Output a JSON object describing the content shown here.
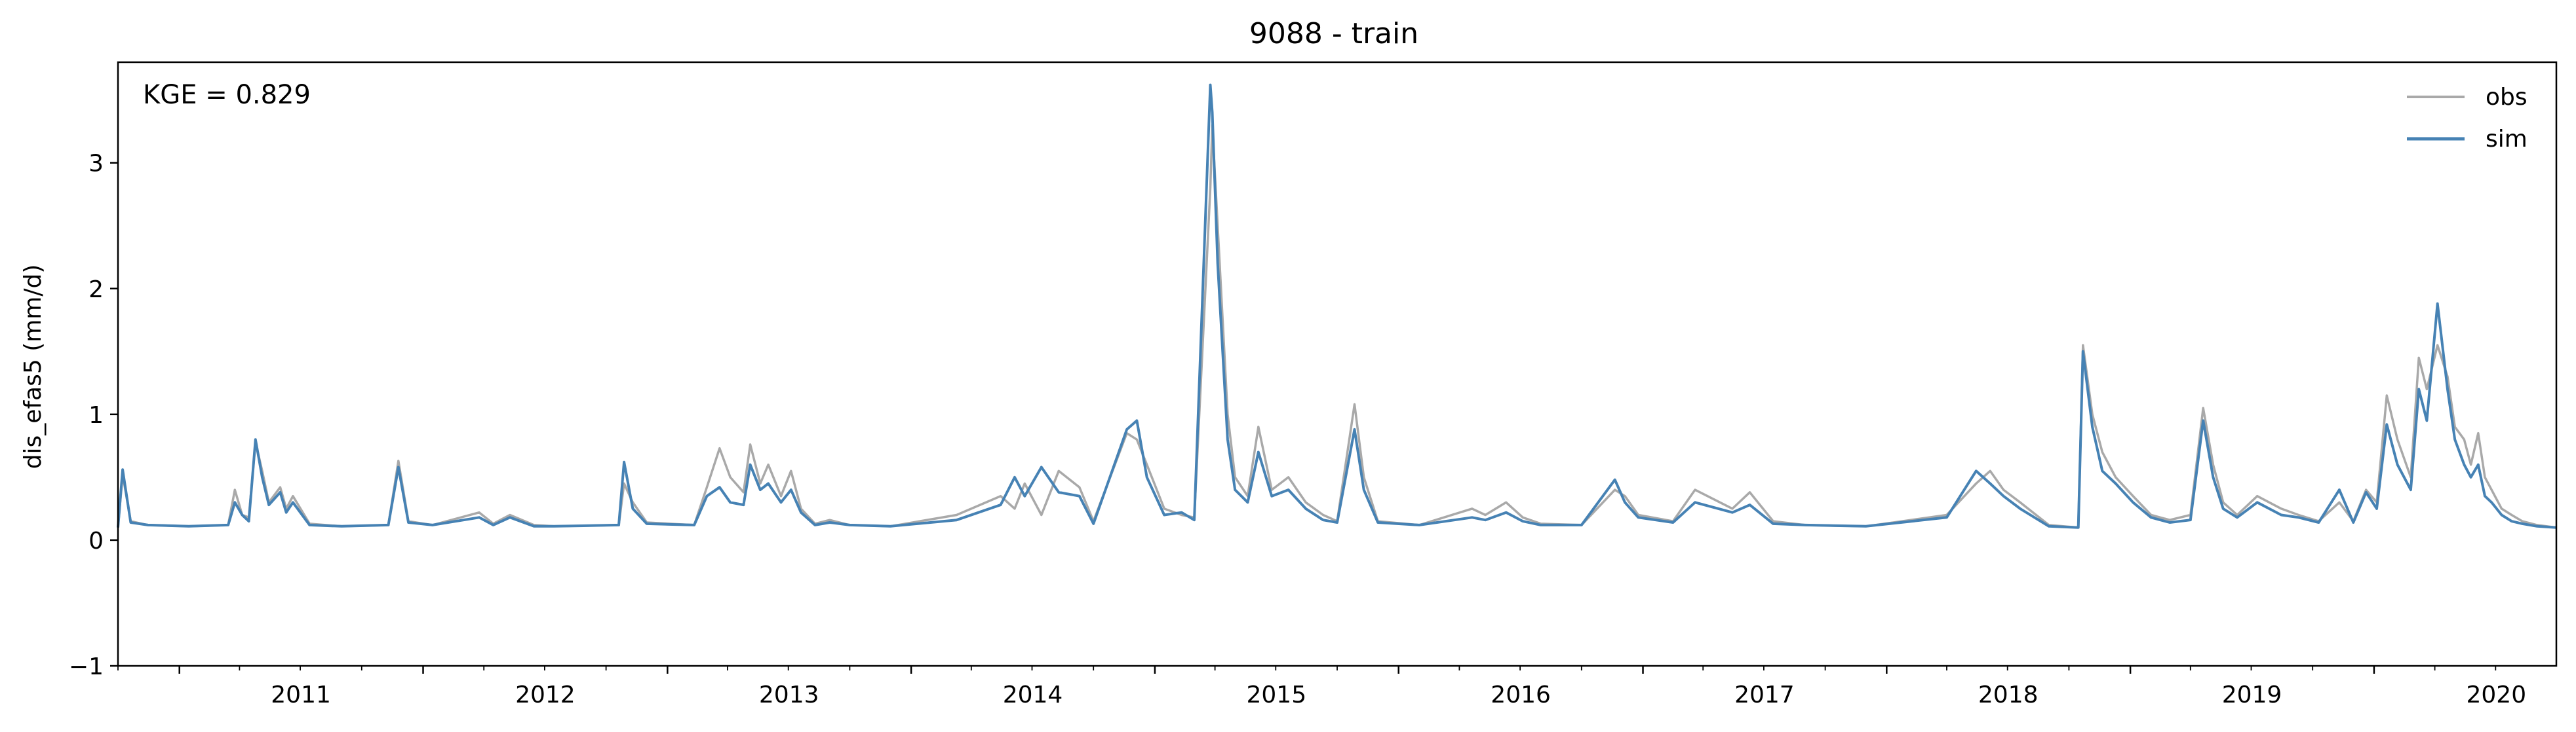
{
  "chart_data": {
    "type": "line",
    "title": "9088 - train",
    "xlabel": "",
    "ylabel": "dis_efas5 (mm/d)",
    "annotation": "KGE = 0.829",
    "ylim": [
      -1,
      3.8
    ],
    "xlim": [
      "2010-10-01",
      "2020-09-30"
    ],
    "yticks": [
      "−1",
      "0",
      "1",
      "2",
      "3"
    ],
    "ytick_values": [
      -1,
      0,
      1,
      2,
      3
    ],
    "xticks": [
      "2011",
      "2012",
      "2013",
      "2014",
      "2015",
      "2016",
      "2017",
      "2018",
      "2019",
      "2020"
    ],
    "xtick_dates": [
      "2011-01-01",
      "2012-01-01",
      "2013-01-01",
      "2014-01-01",
      "2015-01-01",
      "2016-01-01",
      "2017-01-01",
      "2018-01-01",
      "2019-01-01",
      "2020-01-01"
    ],
    "grid": false,
    "legend_position": "top-right",
    "series": [
      {
        "name": "obs",
        "color": "#a9a9a9",
        "x": [
          "2010-10-01",
          "2010-10-08",
          "2010-10-20",
          "2010-11-15",
          "2011-01-15",
          "2011-03-15",
          "2011-03-25",
          "2011-04-05",
          "2011-04-15",
          "2011-04-25",
          "2011-05-05",
          "2011-05-15",
          "2011-06-01",
          "2011-06-10",
          "2011-06-20",
          "2011-07-15",
          "2011-09-01",
          "2011-11-10",
          "2011-11-25",
          "2011-12-10",
          "2012-01-15",
          "2012-03-25",
          "2012-04-15",
          "2012-05-10",
          "2012-06-15",
          "2012-07-15",
          "2012-10-20",
          "2012-10-28",
          "2012-11-10",
          "2012-12-01",
          "2013-02-10",
          "2013-03-01",
          "2013-03-20",
          "2013-04-05",
          "2013-04-25",
          "2013-05-05",
          "2013-05-20",
          "2013-06-01",
          "2013-06-20",
          "2013-07-05",
          "2013-07-20",
          "2013-08-10",
          "2013-09-01",
          "2013-10-01",
          "2013-12-01",
          "2014-03-10",
          "2014-05-15",
          "2014-06-05",
          "2014-06-20",
          "2014-07-15",
          "2014-08-10",
          "2014-09-10",
          "2014-10-01",
          "2014-11-20",
          "2014-12-05",
          "2014-12-20",
          "2015-01-15",
          "2015-02-10",
          "2015-03-01",
          "2015-03-25",
          "2015-03-28",
          "2015-04-05",
          "2015-04-20",
          "2015-05-01",
          "2015-05-20",
          "2015-06-05",
          "2015-06-25",
          "2015-07-20",
          "2015-08-15",
          "2015-09-10",
          "2015-10-01",
          "2015-10-27",
          "2015-11-10",
          "2015-12-01",
          "2016-02-01",
          "2016-04-20",
          "2016-05-10",
          "2016-06-10",
          "2016-07-05",
          "2016-08-01",
          "2016-10-01",
          "2016-11-20",
          "2016-12-05",
          "2016-12-25",
          "2017-02-15",
          "2017-03-20",
          "2017-05-15",
          "2017-06-10",
          "2017-07-15",
          "2017-09-01",
          "2017-12-01",
          "2018-04-01",
          "2018-05-15",
          "2018-06-05",
          "2018-06-25",
          "2018-07-20",
          "2018-09-01",
          "2018-10-15",
          "2018-10-22",
          "2018-11-05",
          "2018-11-20",
          "2018-12-10",
          "2019-01-05",
          "2019-02-01",
          "2019-03-01",
          "2019-04-01",
          "2019-04-20",
          "2019-05-05",
          "2019-05-20",
          "2019-06-10",
          "2019-07-10",
          "2019-08-15",
          "2019-09-10",
          "2019-10-10",
          "2019-11-10",
          "2019-12-01",
          "2019-12-20",
          "2020-01-05",
          "2020-01-20",
          "2020-02-05",
          "2020-02-25",
          "2020-03-08",
          "2020-03-20",
          "2020-04-05",
          "2020-04-20",
          "2020-05-01",
          "2020-05-15",
          "2020-05-25",
          "2020-06-05",
          "2020-06-15",
          "2020-06-25",
          "2020-07-10",
          "2020-07-25",
          "2020-08-10",
          "2020-09-01",
          "2020-09-30"
        ],
        "values": [
          0.1,
          0.52,
          0.15,
          0.12,
          0.11,
          0.12,
          0.4,
          0.2,
          0.18,
          0.78,
          0.55,
          0.3,
          0.42,
          0.25,
          0.35,
          0.13,
          0.11,
          0.12,
          0.63,
          0.15,
          0.12,
          0.22,
          0.13,
          0.2,
          0.12,
          0.11,
          0.12,
          0.45,
          0.3,
          0.14,
          0.12,
          0.42,
          0.73,
          0.5,
          0.38,
          0.76,
          0.45,
          0.6,
          0.35,
          0.55,
          0.25,
          0.13,
          0.16,
          0.12,
          0.11,
          0.2,
          0.35,
          0.25,
          0.45,
          0.2,
          0.55,
          0.42,
          0.15,
          0.85,
          0.8,
          0.6,
          0.25,
          0.2,
          0.18,
          2.8,
          3.3,
          2.5,
          1.0,
          0.5,
          0.35,
          0.9,
          0.4,
          0.5,
          0.3,
          0.2,
          0.15,
          1.08,
          0.5,
          0.15,
          0.12,
          0.25,
          0.2,
          0.3,
          0.18,
          0.13,
          0.12,
          0.4,
          0.35,
          0.2,
          0.15,
          0.4,
          0.25,
          0.38,
          0.15,
          0.12,
          0.11,
          0.2,
          0.45,
          0.55,
          0.4,
          0.3,
          0.12,
          0.1,
          1.55,
          1.0,
          0.7,
          0.5,
          0.35,
          0.2,
          0.16,
          0.2,
          1.05,
          0.6,
          0.3,
          0.2,
          0.35,
          0.25,
          0.2,
          0.15,
          0.3,
          0.15,
          0.4,
          0.3,
          1.15,
          0.8,
          0.5,
          1.45,
          1.2,
          1.55,
          1.3,
          0.9,
          0.8,
          0.6,
          0.85,
          0.5,
          0.4,
          0.25,
          0.2,
          0.15,
          0.12,
          0.1
        ]
      },
      {
        "name": "sim",
        "color": "#4682b4",
        "x": [
          "2010-10-01",
          "2010-10-08",
          "2010-10-20",
          "2010-11-15",
          "2011-01-15",
          "2011-03-15",
          "2011-03-25",
          "2011-04-05",
          "2011-04-15",
          "2011-04-25",
          "2011-05-05",
          "2011-05-15",
          "2011-06-01",
          "2011-06-10",
          "2011-06-20",
          "2011-07-15",
          "2011-09-01",
          "2011-11-10",
          "2011-11-25",
          "2011-12-10",
          "2012-01-15",
          "2012-03-25",
          "2012-04-15",
          "2012-05-10",
          "2012-06-15",
          "2012-07-15",
          "2012-10-20",
          "2012-10-28",
          "2012-11-10",
          "2012-12-01",
          "2013-02-10",
          "2013-03-01",
          "2013-03-20",
          "2013-04-05",
          "2013-04-25",
          "2013-05-05",
          "2013-05-20",
          "2013-06-01",
          "2013-06-20",
          "2013-07-05",
          "2013-07-20",
          "2013-08-10",
          "2013-09-01",
          "2013-10-01",
          "2013-12-01",
          "2014-03-10",
          "2014-05-15",
          "2014-06-05",
          "2014-06-20",
          "2014-07-15",
          "2014-08-10",
          "2014-09-10",
          "2014-10-01",
          "2014-11-20",
          "2014-12-05",
          "2014-12-20",
          "2015-01-15",
          "2015-02-10",
          "2015-03-01",
          "2015-03-25",
          "2015-03-28",
          "2015-04-05",
          "2015-04-20",
          "2015-05-01",
          "2015-05-20",
          "2015-06-05",
          "2015-06-25",
          "2015-07-20",
          "2015-08-15",
          "2015-09-10",
          "2015-10-01",
          "2015-10-27",
          "2015-11-10",
          "2015-12-01",
          "2016-02-01",
          "2016-04-20",
          "2016-05-10",
          "2016-06-10",
          "2016-07-05",
          "2016-08-01",
          "2016-10-01",
          "2016-11-20",
          "2016-12-05",
          "2016-12-25",
          "2017-02-15",
          "2017-03-20",
          "2017-05-15",
          "2017-06-10",
          "2017-07-15",
          "2017-09-01",
          "2017-12-01",
          "2018-04-01",
          "2018-05-15",
          "2018-06-05",
          "2018-06-25",
          "2018-07-20",
          "2018-09-01",
          "2018-10-15",
          "2018-10-22",
          "2018-11-05",
          "2018-11-20",
          "2018-12-10",
          "2019-01-05",
          "2019-02-01",
          "2019-03-01",
          "2019-04-01",
          "2019-04-20",
          "2019-05-05",
          "2019-05-20",
          "2019-06-10",
          "2019-07-10",
          "2019-08-15",
          "2019-09-10",
          "2019-10-10",
          "2019-11-10",
          "2019-12-01",
          "2019-12-20",
          "2020-01-05",
          "2020-01-20",
          "2020-02-05",
          "2020-02-25",
          "2020-03-08",
          "2020-03-20",
          "2020-04-05",
          "2020-04-20",
          "2020-05-01",
          "2020-05-15",
          "2020-05-25",
          "2020-06-05",
          "2020-06-15",
          "2020-06-25",
          "2020-07-10",
          "2020-07-25",
          "2020-08-10",
          "2020-09-01",
          "2020-09-30"
        ],
        "values": [
          0.1,
          0.56,
          0.14,
          0.12,
          0.11,
          0.12,
          0.3,
          0.2,
          0.15,
          0.8,
          0.5,
          0.28,
          0.38,
          0.22,
          0.3,
          0.12,
          0.11,
          0.12,
          0.58,
          0.14,
          0.12,
          0.18,
          0.12,
          0.18,
          0.11,
          0.11,
          0.12,
          0.62,
          0.25,
          0.13,
          0.12,
          0.35,
          0.42,
          0.3,
          0.28,
          0.6,
          0.4,
          0.45,
          0.3,
          0.4,
          0.22,
          0.12,
          0.14,
          0.12,
          0.11,
          0.16,
          0.28,
          0.5,
          0.35,
          0.58,
          0.38,
          0.35,
          0.13,
          0.88,
          0.95,
          0.5,
          0.2,
          0.22,
          0.16,
          3.62,
          3.4,
          2.2,
          0.8,
          0.4,
          0.3,
          0.7,
          0.35,
          0.4,
          0.25,
          0.16,
          0.14,
          0.88,
          0.4,
          0.14,
          0.12,
          0.18,
          0.16,
          0.22,
          0.15,
          0.12,
          0.12,
          0.48,
          0.3,
          0.18,
          0.14,
          0.3,
          0.22,
          0.28,
          0.13,
          0.12,
          0.11,
          0.18,
          0.55,
          0.45,
          0.35,
          0.25,
          0.11,
          0.1,
          1.5,
          0.9,
          0.55,
          0.45,
          0.3,
          0.18,
          0.14,
          0.16,
          0.95,
          0.5,
          0.25,
          0.18,
          0.3,
          0.2,
          0.18,
          0.14,
          0.4,
          0.14,
          0.38,
          0.25,
          0.92,
          0.6,
          0.4,
          1.2,
          0.95,
          1.88,
          1.2,
          0.8,
          0.6,
          0.5,
          0.6,
          0.35,
          0.3,
          0.2,
          0.15,
          0.13,
          0.11,
          0.1
        ]
      }
    ]
  }
}
